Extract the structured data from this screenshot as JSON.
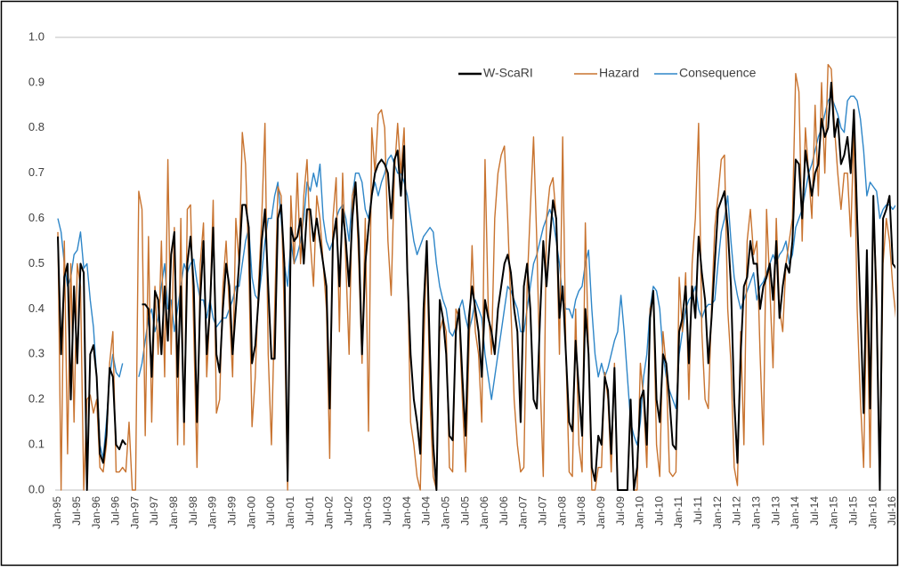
{
  "chart_data": {
    "type": "line",
    "categories": [
      "Jan-95",
      null,
      null,
      null,
      null,
      null,
      "Jul-95",
      null,
      null,
      null,
      null,
      null,
      "Jan-96",
      null,
      null,
      null,
      null,
      null,
      "Jul-96",
      null,
      null,
      null,
      null,
      null,
      "Jan-97",
      null,
      null,
      null,
      null,
      null,
      "Jul-97",
      null,
      null,
      null,
      null,
      null,
      "Jan-98",
      null,
      null,
      null,
      null,
      null,
      "Jul-98",
      null,
      null,
      null,
      null,
      null,
      "Jan-99",
      null,
      null,
      null,
      null,
      null,
      "Jul-99",
      null,
      null,
      null,
      null,
      null,
      "Jan-00",
      null,
      null,
      null,
      null,
      null,
      "Jul-00",
      null,
      null,
      null,
      null,
      null,
      "Jan-01",
      null,
      null,
      null,
      null,
      null,
      "Jul-01",
      null,
      null,
      null,
      null,
      null,
      "Jan-02",
      null,
      null,
      null,
      null,
      null,
      "Jul-02",
      null,
      null,
      null,
      null,
      null,
      "Jan-03",
      null,
      null,
      null,
      null,
      null,
      "Jul-03",
      null,
      null,
      null,
      null,
      null,
      "Jan-04",
      null,
      null,
      null,
      null,
      null,
      "Jul-04",
      null,
      null,
      null,
      null,
      null,
      "Jan-05",
      null,
      null,
      null,
      null,
      null,
      "Jul-05",
      null,
      null,
      null,
      null,
      null,
      "Jan-06",
      null,
      null,
      null,
      null,
      null,
      "Jul-06",
      null,
      null,
      null,
      null,
      null,
      "Jan-07",
      null,
      null,
      null,
      null,
      null,
      "Jul-07",
      null,
      null,
      null,
      null,
      null,
      "Jan-08",
      null,
      null,
      null,
      null,
      null,
      "Jul-08",
      null,
      null,
      null,
      null,
      null,
      "Jan-09",
      null,
      null,
      null,
      null,
      null,
      "Jul-09",
      null,
      null,
      null,
      null,
      null,
      "Jan-10",
      null,
      null,
      null,
      null,
      null,
      "Jul-10",
      null,
      null,
      null,
      null,
      null,
      "Jan-11",
      null,
      null,
      null,
      null,
      null,
      "Jul-11",
      null,
      null,
      null,
      null,
      null,
      "Jan-12",
      null,
      null,
      null,
      null,
      null,
      "Jul-12",
      null,
      null,
      null,
      null,
      null,
      "Jan-13",
      null,
      null,
      null,
      null,
      null,
      "Jul-13",
      null,
      null,
      null,
      null,
      null,
      "Jan-14",
      null,
      null,
      null,
      null,
      null,
      "Jul-14",
      null,
      null,
      null,
      null,
      null,
      "Jan-15",
      null,
      null,
      null,
      null,
      null,
      "Jul-15",
      null,
      null,
      null,
      null,
      null,
      "Jan-16",
      null,
      null,
      null,
      null,
      null,
      "Jul-16",
      null
    ],
    "series": [
      {
        "name": "W-ScaRI",
        "color": "#000000",
        "values": [
          0.56,
          0.3,
          0.47,
          0.5,
          0.2,
          0.45,
          0.28,
          0.5,
          0.48,
          0.0,
          0.3,
          0.32,
          0.25,
          0.08,
          0.06,
          0.12,
          0.27,
          0.25,
          0.1,
          0.09,
          0.11,
          0.1,
          null,
          null,
          null,
          null,
          0.41,
          0.41,
          0.4,
          0.25,
          0.44,
          0.42,
          0.3,
          0.45,
          0.33,
          0.52,
          0.57,
          0.25,
          0.45,
          0.15,
          0.5,
          0.56,
          0.45,
          0.15,
          0.42,
          0.55,
          0.3,
          0.4,
          0.58,
          0.3,
          0.26,
          0.4,
          0.5,
          0.45,
          0.3,
          0.4,
          0.5,
          0.63,
          0.63,
          0.58,
          0.28,
          0.32,
          0.42,
          0.55,
          0.62,
          0.45,
          0.29,
          0.29,
          0.6,
          0.63,
          0.5,
          0.02,
          0.58,
          0.55,
          0.56,
          0.6,
          0.5,
          0.62,
          0.62,
          0.55,
          0.6,
          0.55,
          0.5,
          0.45,
          0.18,
          0.55,
          0.6,
          0.45,
          0.62,
          0.55,
          0.45,
          0.6,
          0.68,
          0.55,
          0.3,
          0.5,
          0.58,
          0.65,
          0.7,
          0.72,
          0.73,
          0.72,
          0.7,
          0.6,
          0.73,
          0.75,
          0.65,
          0.76,
          0.48,
          0.3,
          0.2,
          0.15,
          0.08,
          0.4,
          0.55,
          0.3,
          0.1,
          0.0,
          0.42,
          0.38,
          0.3,
          0.12,
          0.11,
          0.35,
          0.4,
          0.25,
          0.12,
          0.38,
          0.45,
          0.4,
          0.35,
          0.25,
          0.42,
          0.38,
          0.35,
          0.3,
          0.4,
          0.45,
          0.5,
          0.52,
          0.48,
          0.4,
          0.35,
          0.15,
          0.45,
          0.5,
          0.4,
          0.2,
          0.18,
          0.38,
          0.55,
          0.45,
          0.55,
          0.64,
          0.6,
          0.38,
          0.45,
          0.3,
          0.15,
          0.13,
          0.33,
          0.22,
          0.12,
          0.4,
          0.3,
          0.05,
          0.02,
          0.12,
          0.1,
          0.25,
          0.22,
          0.08,
          0.27,
          0.0,
          0.0,
          0.0,
          0.0,
          0.2,
          0.0,
          0.05,
          0.2,
          0.22,
          0.1,
          0.38,
          0.44,
          0.2,
          0.15,
          0.3,
          0.28,
          0.2,
          0.1,
          0.09,
          0.35,
          0.38,
          0.45,
          0.28,
          0.45,
          0.38,
          0.56,
          0.48,
          0.42,
          0.28,
          0.38,
          0.5,
          0.62,
          0.64,
          0.66,
          0.58,
          0.45,
          0.2,
          0.06,
          0.3,
          0.45,
          0.47,
          0.55,
          0.5,
          0.5,
          0.4,
          0.45,
          0.47,
          0.5,
          0.42,
          0.55,
          0.38,
          0.45,
          0.5,
          0.48,
          0.55,
          0.73,
          0.72,
          0.6,
          0.75,
          0.7,
          0.65,
          0.7,
          0.72,
          0.82,
          0.78,
          0.8,
          0.9,
          0.78,
          0.82,
          0.72,
          0.74,
          0.78,
          0.7,
          0.84,
          0.6,
          0.4,
          0.17,
          0.53,
          0.18,
          0.65,
          0.4,
          0.0,
          0.6,
          0.62,
          0.65,
          0.5,
          0.49
        ]
      },
      {
        "name": "Hazard",
        "color": "#c8732f",
        "values": [
          0.57,
          0.0,
          0.55,
          0.08,
          0.5,
          0.15,
          0.5,
          0.45,
          0.0,
          0.2,
          0.21,
          0.17,
          0.2,
          0.05,
          0.04,
          0.1,
          0.28,
          0.35,
          0.04,
          0.04,
          0.05,
          0.04,
          0.15,
          0.0,
          0.0,
          0.66,
          0.62,
          0.12,
          0.56,
          0.15,
          0.45,
          0.3,
          0.55,
          0.25,
          0.73,
          0.3,
          0.58,
          0.1,
          0.6,
          0.1,
          0.62,
          0.63,
          0.35,
          0.05,
          0.5,
          0.59,
          0.25,
          0.4,
          0.64,
          0.17,
          0.2,
          0.45,
          0.55,
          0.4,
          0.25,
          0.6,
          0.5,
          0.79,
          0.72,
          0.5,
          0.14,
          0.25,
          0.45,
          0.6,
          0.81,
          0.3,
          0.1,
          0.4,
          0.67,
          0.65,
          0.38,
          0.0,
          0.65,
          0.5,
          0.7,
          0.5,
          0.65,
          0.73,
          0.55,
          0.45,
          0.65,
          0.6,
          0.5,
          0.4,
          0.07,
          0.6,
          0.69,
          0.35,
          0.7,
          0.5,
          0.3,
          0.65,
          0.68,
          0.5,
          0.28,
          0.6,
          0.13,
          0.8,
          0.7,
          0.83,
          0.84,
          0.8,
          0.55,
          0.43,
          0.7,
          0.81,
          0.7,
          0.8,
          0.5,
          0.15,
          0.1,
          0.03,
          0.0,
          0.3,
          0.54,
          0.2,
          0.03,
          0.0,
          0.35,
          0.38,
          0.35,
          0.05,
          0.04,
          0.4,
          0.38,
          0.2,
          0.04,
          0.3,
          0.54,
          0.35,
          0.3,
          0.15,
          0.73,
          0.4,
          0.3,
          0.6,
          0.7,
          0.74,
          0.76,
          0.6,
          0.4,
          0.2,
          0.1,
          0.04,
          0.05,
          0.45,
          0.62,
          0.78,
          0.55,
          0.25,
          0.03,
          0.6,
          0.67,
          0.69,
          0.6,
          0.3,
          0.78,
          0.3,
          0.04,
          0.03,
          0.4,
          0.1,
          0.04,
          0.59,
          0.3,
          0.0,
          0.0,
          0.05,
          0.05,
          0.26,
          0.2,
          0.04,
          0.28,
          0.0,
          0.0,
          0.0,
          0.0,
          0.18,
          0.0,
          0.0,
          0.28,
          0.2,
          0.05,
          0.4,
          0.43,
          0.1,
          0.03,
          0.35,
          0.27,
          0.04,
          0.03,
          0.04,
          0.47,
          0.35,
          0.48,
          0.2,
          0.5,
          0.6,
          0.81,
          0.35,
          0.2,
          0.18,
          0.4,
          0.58,
          0.65,
          0.73,
          0.74,
          0.4,
          0.28,
          0.05,
          0.01,
          0.35,
          0.1,
          0.55,
          0.62,
          0.52,
          0.55,
          0.3,
          0.1,
          0.62,
          0.45,
          0.27,
          0.6,
          0.4,
          0.35,
          0.5,
          0.55,
          0.6,
          0.92,
          0.88,
          0.55,
          0.8,
          0.7,
          0.6,
          0.85,
          0.65,
          0.9,
          0.7,
          0.94,
          0.93,
          0.8,
          0.7,
          0.62,
          0.7,
          0.7,
          0.56,
          0.8,
          0.4,
          0.2,
          0.05,
          0.45,
          0.05,
          0.62,
          0.45,
          0.0,
          0.5,
          0.6,
          0.55,
          0.45,
          0.38
        ]
      },
      {
        "name": "Consequence",
        "color": "#2e86c8",
        "values": [
          0.6,
          0.57,
          0.5,
          0.45,
          0.47,
          0.52,
          0.53,
          0.57,
          0.49,
          0.5,
          0.42,
          0.36,
          0.25,
          0.1,
          0.07,
          0.15,
          0.25,
          0.3,
          0.26,
          0.25,
          0.28,
          null,
          null,
          null,
          null,
          0.25,
          0.28,
          0.33,
          0.38,
          0.4,
          0.35,
          0.38,
          0.45,
          0.5,
          0.4,
          0.42,
          0.35,
          0.4,
          0.45,
          0.5,
          0.48,
          0.5,
          0.51,
          0.46,
          0.42,
          0.42,
          0.38,
          0.42,
          0.38,
          0.36,
          0.37,
          0.38,
          0.38,
          0.4,
          0.42,
          0.45,
          0.45,
          0.5,
          0.55,
          0.58,
          0.47,
          0.43,
          0.42,
          0.48,
          0.55,
          0.6,
          0.6,
          0.65,
          0.68,
          0.6,
          0.5,
          0.45,
          0.55,
          0.5,
          0.52,
          0.55,
          0.6,
          0.68,
          0.66,
          0.7,
          0.67,
          0.72,
          0.6,
          0.55,
          0.53,
          0.55,
          0.6,
          0.62,
          0.63,
          0.6,
          0.55,
          0.65,
          0.7,
          0.7,
          0.68,
          0.62,
          0.6,
          0.65,
          0.68,
          0.65,
          0.68,
          0.7,
          0.73,
          0.74,
          0.72,
          0.7,
          0.7,
          0.68,
          0.65,
          0.6,
          0.55,
          0.52,
          0.54,
          0.56,
          0.57,
          0.58,
          0.57,
          0.5,
          0.45,
          0.42,
          0.4,
          0.35,
          0.34,
          0.36,
          0.4,
          0.42,
          0.38,
          0.35,
          0.38,
          0.42,
          0.4,
          0.38,
          0.3,
          0.25,
          0.2,
          0.25,
          0.3,
          0.35,
          0.4,
          0.45,
          0.44,
          0.42,
          0.4,
          0.35,
          0.35,
          0.4,
          0.45,
          0.5,
          0.52,
          0.55,
          0.58,
          0.6,
          0.62,
          0.6,
          0.55,
          0.5,
          0.42,
          0.4,
          0.4,
          0.38,
          0.42,
          0.44,
          0.45,
          0.5,
          0.53,
          0.4,
          0.3,
          0.25,
          0.28,
          0.25,
          0.27,
          0.3,
          0.33,
          0.35,
          0.43,
          0.35,
          0.25,
          0.15,
          0.12,
          0.1,
          0.15,
          0.25,
          0.3,
          0.4,
          0.45,
          0.44,
          0.4,
          0.3,
          0.25,
          0.22,
          0.2,
          0.18,
          0.3,
          0.35,
          0.4,
          0.42,
          0.43,
          0.45,
          0.4,
          0.38,
          0.4,
          0.41,
          0.41,
          0.42,
          0.5,
          0.57,
          0.6,
          0.65,
          0.55,
          0.47,
          0.43,
          0.4,
          0.42,
          0.44,
          0.46,
          0.48,
          0.42,
          0.45,
          0.46,
          0.48,
          0.5,
          0.52,
          0.5,
          0.52,
          0.53,
          0.55,
          0.5,
          0.52,
          0.58,
          0.6,
          0.62,
          0.66,
          0.7,
          0.72,
          0.75,
          0.78,
          0.8,
          0.83,
          0.86,
          0.87,
          0.85,
          0.83,
          0.8,
          0.79,
          0.86,
          0.87,
          0.87,
          0.86,
          0.82,
          0.75,
          0.65,
          0.68,
          0.67,
          0.66,
          0.6,
          0.62,
          0.63,
          0.63,
          0.62,
          0.63
        ]
      }
    ],
    "ylim": [
      0,
      1
    ],
    "yticks": [
      {
        "value": 0,
        "label": "0.0"
      },
      0.1,
      0.2,
      0.3,
      0.4,
      0.5,
      0.6,
      0.7,
      0.8,
      0.9,
      {
        "value": 1,
        "label": "1.0"
      }
    ],
    "grid": false
  }
}
